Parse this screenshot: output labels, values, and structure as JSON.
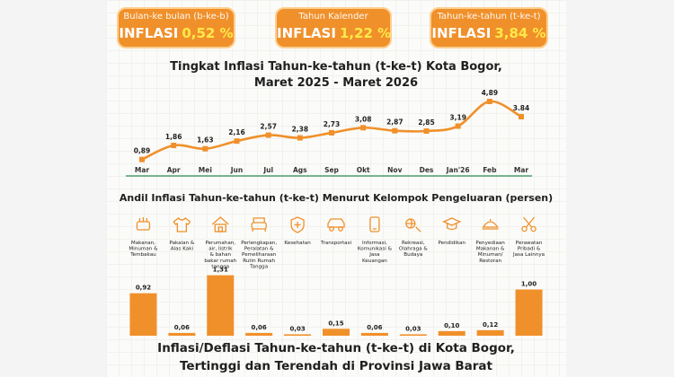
{
  "badges": [
    {
      "label": "Bulan-ke bulan (b-ke-b)",
      "prefix": "INFLASI",
      "value": "0,52 %"
    },
    {
      "label": "Tahun Kalender",
      "prefix": "INFLASI",
      "value": "1,22 %"
    },
    {
      "label": "Tahun-ke-tahun (t-ke-t)",
      "prefix": "INFLASI",
      "value": "3,84 %"
    }
  ],
  "line_title_1": "Tingkat Inflasi Tahun-ke-tahun (t-ke-t) Kota Bogor,",
  "line_title_2": "Maret 2025 - Maret 2026",
  "bar_title": "Andil Inflasi Tahun-ke-tahun (t-ke-t) Menurut Kelompok Pengeluaran (persen)",
  "footer_title_1": "Inflasi/Deflasi Tahun-ke-tahun (t-ke-t) di Kota Bogor,",
  "footer_title_2": "Tertinggi dan Terendah di Provinsi Jawa Barat",
  "colors": {
    "accent": "#f0902a",
    "baseline": "#2e8b57"
  },
  "chart_data": [
    {
      "type": "line",
      "title": "Tingkat Inflasi Tahun-ke-tahun (t-ke-t) Kota Bogor, Maret 2025 - Maret 2026",
      "categories": [
        "Mar",
        "Apr",
        "Mei",
        "Jun",
        "Jul",
        "Ags",
        "Sep",
        "Okt",
        "Nov",
        "Des",
        "Jan'26",
        "Feb",
        "Mar"
      ],
      "values": [
        0.89,
        1.86,
        1.63,
        2.16,
        2.57,
        2.38,
        2.73,
        3.08,
        2.87,
        2.85,
        3.19,
        4.89,
        3.84
      ],
      "labels": [
        "0,89",
        "1,86",
        "1,63",
        "2,16",
        "2,57",
        "2,38",
        "2,73",
        "3,08",
        "2,87",
        "2,85",
        "3,19",
        "4,89",
        "3.84"
      ],
      "ylim": [
        0.5,
        5.2
      ],
      "grid": false
    },
    {
      "type": "bar",
      "title": "Andil Inflasi Tahun-ke-tahun (t-ke-t) Menurut Kelompok Pengeluaran (persen)",
      "categories": [
        "Makanan, Minuman & Tembakau",
        "Pakaian & Alas Kaki",
        "Perumahan, air, listrik & bahan bakar rumah tangga",
        "Perlengkapan, Peralatan & Pemeliharaan Rutin Rumah Tangga",
        "Kesehatan",
        "Transportasi",
        "Informasi, Komunikasi & Jasa Keuangan",
        "Rekreasi, Olahraga & Budaya",
        "Pendidikan",
        "Penyediaan Makanan & Minuman/ Restoran",
        "Perawatan Pribadi & Jasa Lainnya"
      ],
      "values": [
        0.92,
        0.06,
        1.31,
        0.06,
        0.03,
        0.15,
        0.06,
        0.03,
        0.1,
        0.12,
        1.0
      ],
      "labels": [
        "0,92",
        "0,06",
        "1,31",
        "0,06",
        "0,03",
        "0,15",
        "0,06",
        "0,03",
        "0,10",
        "0,12",
        "1,00"
      ],
      "icons": [
        "food-icon",
        "shirt-icon",
        "house-icon",
        "furniture-icon",
        "health-shield-icon",
        "car-icon",
        "phone-icon",
        "recreation-icon",
        "education-icon",
        "restaurant-icon",
        "scissors-icon"
      ],
      "ylim": [
        0,
        1.4
      ]
    }
  ]
}
